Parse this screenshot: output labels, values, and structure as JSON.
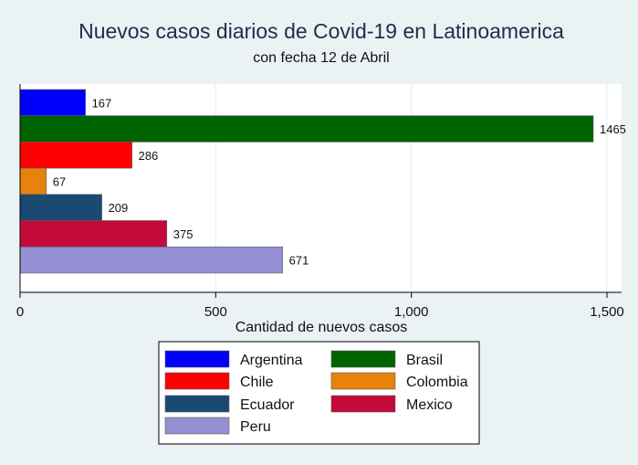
{
  "chart_data": {
    "type": "bar",
    "orientation": "horizontal",
    "title": "Nuevos casos diarios de Covid-19 en Latinoamerica",
    "subtitle": "con fecha 12 de Abril",
    "xlabel": "Cantidad de nuevos casos",
    "ylabel": "",
    "xlim": [
      0,
      1500
    ],
    "xticks": [
      0,
      500,
      1000,
      1500
    ],
    "xtick_labels": [
      "0",
      "500",
      "1,000",
      "1,500"
    ],
    "grid": true,
    "legend_position": "bottom",
    "series": [
      {
        "name": "Argentina",
        "value": 167,
        "label": "167",
        "color": "#0000ff"
      },
      {
        "name": "Brasil",
        "value": 1465,
        "label": "1465",
        "color": "#006400"
      },
      {
        "name": "Chile",
        "value": 286,
        "label": "286",
        "color": "#ff0000"
      },
      {
        "name": "Colombia",
        "value": 67,
        "label": "67",
        "color": "#e8820c"
      },
      {
        "name": "Ecuador",
        "value": 209,
        "label": "209",
        "color": "#1a4a72"
      },
      {
        "name": "Mexico",
        "value": 375,
        "label": "375",
        "color": "#c40a3a"
      },
      {
        "name": "Peru",
        "value": 671,
        "label": "671",
        "color": "#9590d4"
      }
    ]
  }
}
